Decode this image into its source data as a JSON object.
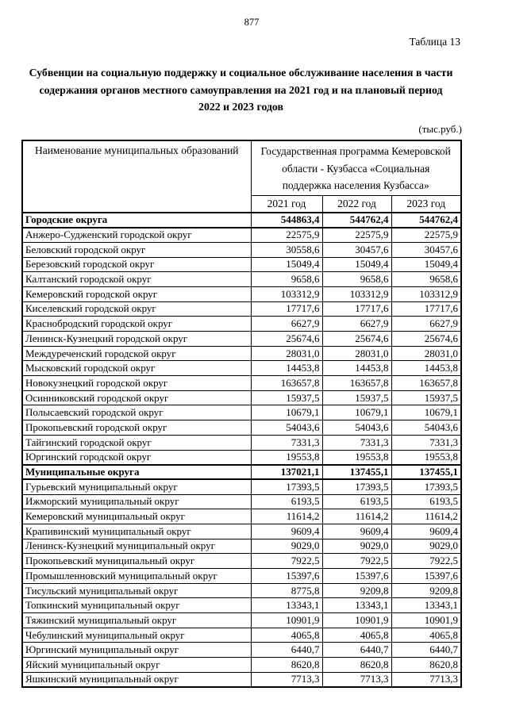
{
  "colors": {
    "background": "#ffffff",
    "text": "#000000",
    "table_border": "#000000"
  },
  "page": {
    "number": "877",
    "table_label": "Таблица 13",
    "title_lines": [
      "Субвенции на социальную поддержку и социальное обслуживание населения в части",
      "содержания органов местного самоуправления на 2021 год и на плановый период",
      "2022 и 2023 годов"
    ],
    "units": "(тыс.руб.)"
  },
  "table": {
    "col1_header": "Наименование муниципальных образований",
    "program_header_lines": [
      "Государственная программа Кемеровской",
      "области - Кузбасса «Социальная",
      "поддержка населения Кузбасса»"
    ],
    "year_headers": [
      "2021 год",
      "2022 год",
      "2023 год"
    ],
    "rows": [
      {
        "name": "Городские округа",
        "bold": true,
        "values": [
          "544863,4",
          "544762,4",
          "544762,4"
        ]
      },
      {
        "name": "Анжеро-Судженский городской округ",
        "bold": false,
        "values": [
          "22575,9",
          "22575,9",
          "22575,9"
        ]
      },
      {
        "name": "Беловский городской округ",
        "bold": false,
        "values": [
          "30558,6",
          "30457,6",
          "30457,6"
        ]
      },
      {
        "name": "Березовский городской округ",
        "bold": false,
        "values": [
          "15049,4",
          "15049,4",
          "15049,4"
        ]
      },
      {
        "name": "Калтанский городской округ",
        "bold": false,
        "values": [
          "9658,6",
          "9658,6",
          "9658,6"
        ]
      },
      {
        "name": "Кемеровский городской округ",
        "bold": false,
        "values": [
          "103312,9",
          "103312,9",
          "103312,9"
        ]
      },
      {
        "name": "Киселевский городской округ",
        "bold": false,
        "values": [
          "17717,6",
          "17717,6",
          "17717,6"
        ]
      },
      {
        "name": "Краснобродский городской округ",
        "bold": false,
        "values": [
          "6627,9",
          "6627,9",
          "6627,9"
        ]
      },
      {
        "name": "Ленинск-Кузнецкий городской округ",
        "bold": false,
        "values": [
          "25674,6",
          "25674,6",
          "25674,6"
        ]
      },
      {
        "name": "Междуреченский городской округ",
        "bold": false,
        "values": [
          "28031,0",
          "28031,0",
          "28031,0"
        ]
      },
      {
        "name": "Мысковский городской округ",
        "bold": false,
        "values": [
          "14453,8",
          "14453,8",
          "14453,8"
        ]
      },
      {
        "name": "Новокузнецкий городской округ",
        "bold": false,
        "values": [
          "163657,8",
          "163657,8",
          "163657,8"
        ]
      },
      {
        "name": "Осинниковский городской округ",
        "bold": false,
        "values": [
          "15937,5",
          "15937,5",
          "15937,5"
        ]
      },
      {
        "name": "Полысаевский городской округ",
        "bold": false,
        "values": [
          "10679,1",
          "10679,1",
          "10679,1"
        ]
      },
      {
        "name": "Прокопьевский городской округ",
        "bold": false,
        "values": [
          "54043,6",
          "54043,6",
          "54043,6"
        ]
      },
      {
        "name": "Тайгинский городской округ",
        "bold": false,
        "values": [
          "7331,3",
          "7331,3",
          "7331,3"
        ]
      },
      {
        "name": "Юргинский городской округ",
        "bold": false,
        "values": [
          "19553,8",
          "19553,8",
          "19553,8"
        ]
      },
      {
        "name": "Муниципальные округа",
        "bold": true,
        "values": [
          "137021,1",
          "137455,1",
          "137455,1"
        ]
      },
      {
        "name": "Гурьевский муниципальный округ",
        "bold": false,
        "values": [
          "17393,5",
          "17393,5",
          "17393,5"
        ]
      },
      {
        "name": "Ижморский муниципальный округ",
        "bold": false,
        "values": [
          "6193,5",
          "6193,5",
          "6193,5"
        ]
      },
      {
        "name": "Кемеровский муниципальный округ",
        "bold": false,
        "values": [
          "11614,2",
          "11614,2",
          "11614,2"
        ]
      },
      {
        "name": "Крапивинский муниципальный округ",
        "bold": false,
        "values": [
          "9609,4",
          "9609,4",
          "9609,4"
        ]
      },
      {
        "name": "Ленинск-Кузнецкий муниципальный округ",
        "bold": false,
        "values": [
          "9029,0",
          "9029,0",
          "9029,0"
        ]
      },
      {
        "name": "Прокопьевский муниципальный округ",
        "bold": false,
        "values": [
          "7922,5",
          "7922,5",
          "7922,5"
        ]
      },
      {
        "name": "Промышленновский муниципальный округ",
        "bold": false,
        "values": [
          "15397,6",
          "15397,6",
          "15397,6"
        ]
      },
      {
        "name": "Тисульский муниципальный округ",
        "bold": false,
        "values": [
          "8775,8",
          "9209,8",
          "9209,8"
        ]
      },
      {
        "name": "Топкинский муниципальный округ",
        "bold": false,
        "values": [
          "13343,1",
          "13343,1",
          "13343,1"
        ]
      },
      {
        "name": "Тяжинский муниципальный округ",
        "bold": false,
        "values": [
          "10901,9",
          "10901,9",
          "10901,9"
        ]
      },
      {
        "name": "Чебулинский муниципальный округ",
        "bold": false,
        "values": [
          "4065,8",
          "4065,8",
          "4065,8"
        ]
      },
      {
        "name": "Юргинский муниципальный округ",
        "bold": false,
        "values": [
          "6440,7",
          "6440,7",
          "6440,7"
        ]
      },
      {
        "name": "Яйский муниципальный округ",
        "bold": false,
        "values": [
          "8620,8",
          "8620,8",
          "8620,8"
        ]
      },
      {
        "name": "Яшкинский муниципальный округ",
        "bold": false,
        "values": [
          "7713,3",
          "7713,3",
          "7713,3"
        ]
      }
    ]
  }
}
